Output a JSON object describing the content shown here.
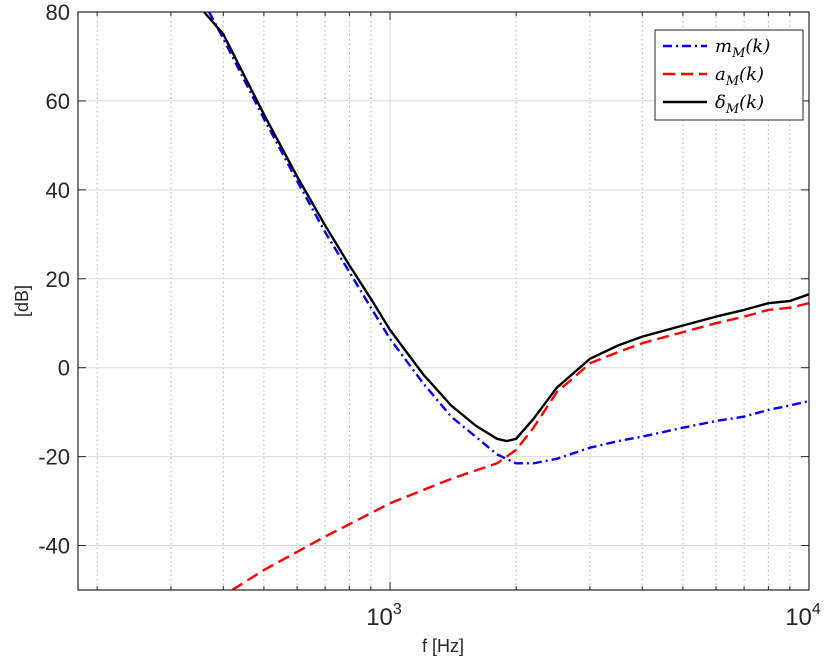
{
  "chart_data": {
    "type": "line",
    "title": "",
    "xlabel": "f [Hz]",
    "ylabel": "[dB]",
    "xscale": "log",
    "xlim": [
      180,
      10000
    ],
    "ylim": [
      -50,
      80
    ],
    "grid": {
      "x": "on (major + minor, dotted)",
      "y": "on (major)"
    },
    "legend": {
      "placement": "top-right"
    },
    "xtick_labels": [
      {
        "base": "10",
        "exp": "3"
      },
      {
        "base": "10",
        "exp": "4"
      }
    ],
    "ytick_labels": [
      "80",
      "60",
      "40",
      "20",
      "0",
      "-20",
      "-40"
    ],
    "series": [
      {
        "name": "m_M(k)",
        "color": "#0000ff",
        "style": "dash-dot",
        "x": [
          370,
          400,
          450,
          500,
          600,
          700,
          800,
          900,
          1000,
          1200,
          1400,
          1600,
          1800,
          2000,
          2200,
          2500,
          3000,
          3500,
          4000,
          5000,
          6000,
          7000,
          8000,
          9000,
          10000
        ],
        "y": [
          80,
          74,
          64.5,
          56,
          42,
          30.5,
          21.5,
          13.5,
          6.5,
          -3.5,
          -11,
          -15.5,
          -19.5,
          -21.5,
          -21.5,
          -20.5,
          -18,
          -16.5,
          -15.5,
          -13.5,
          -12,
          -11,
          -9.5,
          -8.5,
          -7.5
        ]
      },
      {
        "name": "a_M(k)",
        "color": "#ff0000",
        "style": "dashed",
        "x": [
          420,
          500,
          700,
          1000,
          1400,
          1800,
          2000,
          2200,
          2500,
          2800,
          3000,
          3500,
          4000,
          5000,
          6000,
          7000,
          8000,
          9000,
          10000
        ],
        "y": [
          -50,
          -45.5,
          -38,
          -30.5,
          -25,
          -21.5,
          -18.5,
          -13.5,
          -5.5,
          -1.5,
          1,
          3.5,
          5.5,
          8,
          10,
          11.5,
          13,
          13.5,
          14.5
        ]
      },
      {
        "name": "δ_M(k)",
        "color": "#000000",
        "style": "solid",
        "x": [
          360,
          400,
          450,
          500,
          600,
          700,
          800,
          900,
          1000,
          1200,
          1400,
          1600,
          1800,
          1900,
          2000,
          2200,
          2500,
          3000,
          3500,
          4000,
          5000,
          6000,
          7000,
          8000,
          9000,
          10000
        ],
        "y": [
          80,
          75,
          65.5,
          57,
          43,
          32,
          23,
          15.5,
          8.5,
          -1.5,
          -8.5,
          -13,
          -16,
          -16.5,
          -16,
          -11.5,
          -4.5,
          2,
          5,
          7,
          9.5,
          11.5,
          13,
          14.5,
          15,
          16.5
        ]
      }
    ]
  }
}
